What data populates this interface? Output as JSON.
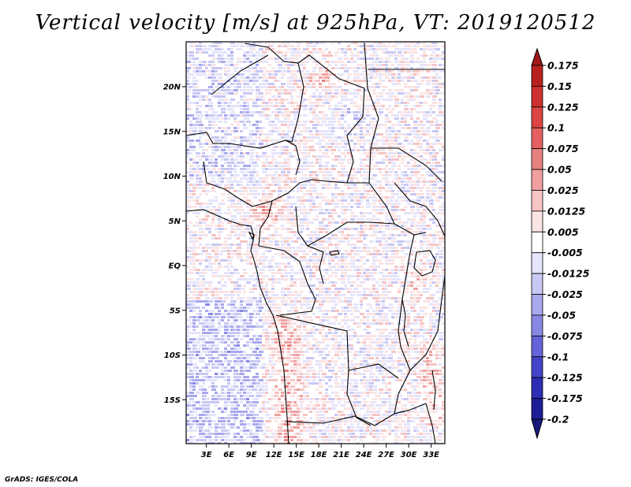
{
  "title": "Vertical velocity [m/s] at 925hPa, VT: 2019120512",
  "credit": "GrADS: IGES/COLA",
  "map": {
    "lat_ticks": [
      "20N",
      "15N",
      "10N",
      "5N",
      "EQ",
      "5S",
      "10S",
      "15S"
    ],
    "lon_ticks": [
      "3E",
      "6E",
      "9E",
      "12E",
      "15E",
      "18E",
      "21E",
      "24E",
      "27E",
      "30E",
      "33E"
    ]
  },
  "colorbar": {
    "labels": [
      "0.175",
      "0.15",
      "0.125",
      "0.1",
      "0.075",
      "0.05",
      "0.025",
      "0.0125",
      "0.005",
      "-0.005",
      "-0.0125",
      "-0.025",
      "-0.05",
      "-0.075",
      "-0.1",
      "-0.125",
      "-0.175",
      "-0.2"
    ],
    "colors": [
      "#a01818",
      "#b82020",
      "#cc3030",
      "#dd4444",
      "#e46060",
      "#e88080",
      "#f0a0a0",
      "#f6c4c4",
      "#fbe4e4",
      "#ffffff",
      "#e4e4fb",
      "#c8c8f4",
      "#a8a8ee",
      "#8888e4",
      "#6464d8",
      "#4444c8",
      "#2c2cb4",
      "#1c1c98",
      "#18187a"
    ]
  }
}
